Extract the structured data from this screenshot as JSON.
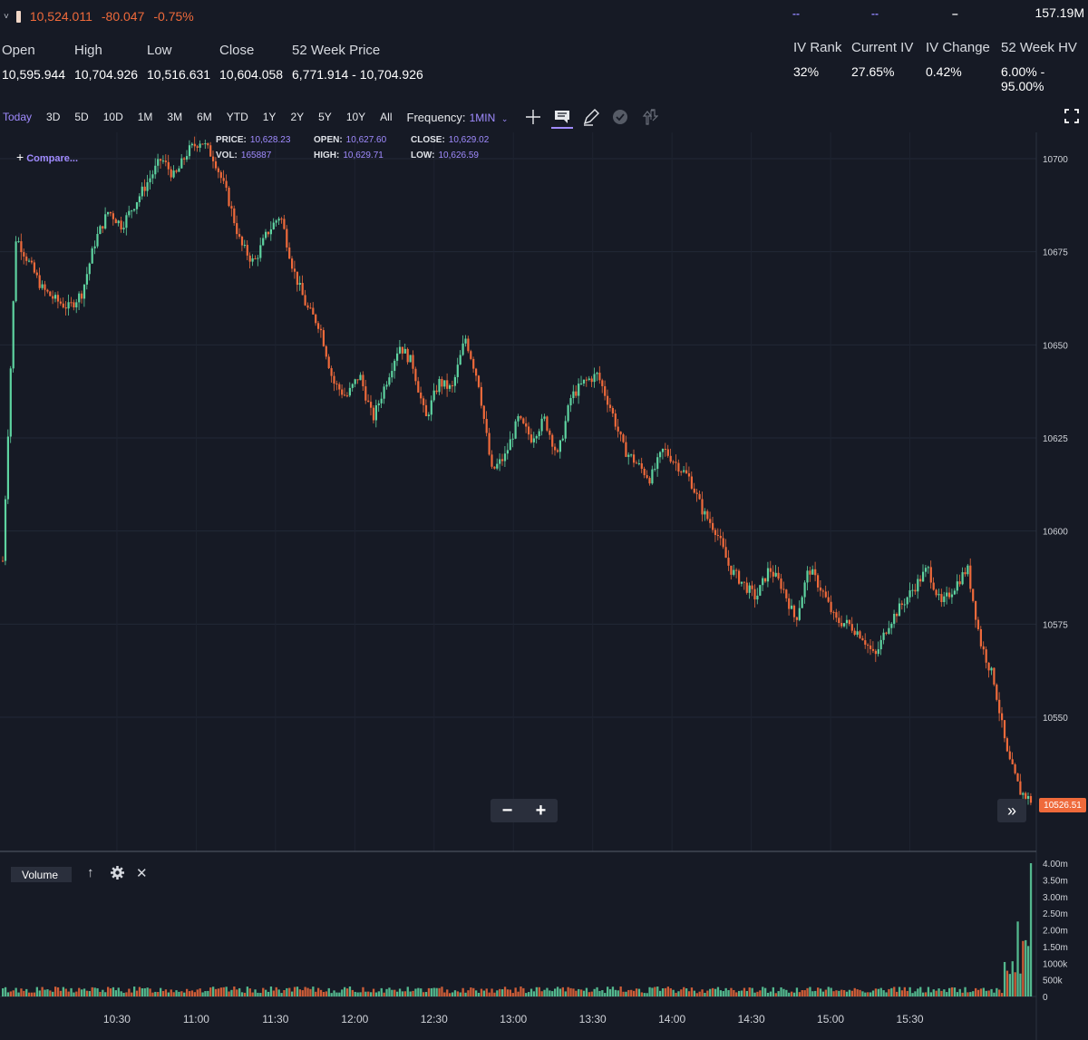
{
  "ticker": {
    "price": "10,524.011",
    "change": "-80.047",
    "change_pct": "-0.75%"
  },
  "quote": [
    {
      "label": "Open",
      "value": "10,595.944"
    },
    {
      "label": "High",
      "value": "10,704.926"
    },
    {
      "label": "Low",
      "value": "10,516.631"
    },
    {
      "label": "Close",
      "value": "10,604.058"
    },
    {
      "label": "52 Week Price",
      "value": "6,771.914 - 10,704.926"
    }
  ],
  "top_right": {
    "dash1": "--",
    "dash2": "--",
    "dash3": "–",
    "total": "157.19M"
  },
  "iv_stats": [
    {
      "label": "IV Rank",
      "value": "32%"
    },
    {
      "label": "Current IV",
      "value": "27.65%"
    },
    {
      "label": "IV Change",
      "value": "0.42%"
    },
    {
      "label": "52 Week HV",
      "value": "6.00% - 95.00%"
    }
  ],
  "ranges": [
    "Today",
    "3D",
    "5D",
    "10D",
    "1M",
    "3M",
    "6M",
    "YTD",
    "1Y",
    "2Y",
    "5Y",
    "10Y",
    "All"
  ],
  "active_range": "Today",
  "frequency": {
    "label": "Frequency:",
    "value": "1MIN"
  },
  "compare_label": "Compare...",
  "ohlc_legend": {
    "price_label": "PRICE:",
    "price": "10,628.23",
    "open_label": "OPEN:",
    "open": "10,627.60",
    "close_label": "CLOSE:",
    "close": "10,629.02",
    "vol_label": "VOL:",
    "vol": "165887",
    "high_label": "HIGH:",
    "high": "10,629.71",
    "low_label": "LOW:",
    "low": "10,626.59"
  },
  "price_tag": "10526.51",
  "volume_label": "Volume",
  "colors": {
    "up": "#5ed3a0",
    "down": "#ef6a3b",
    "accent": "#a08bff",
    "background": "#161a25"
  },
  "icons": [
    "crosshair-icon",
    "chat-icon",
    "pencil-icon",
    "check-circle-icon",
    "up-down-arrows-icon",
    "fullscreen-icon"
  ],
  "chart_data": {
    "type": "candlestick",
    "price_axis": {
      "ticks": [
        10700,
        10675,
        10650,
        10625,
        10600,
        10575,
        10550
      ],
      "ylim": [
        10519,
        10706
      ]
    },
    "time_axis": {
      "ticks": [
        "10:30",
        "11:00",
        "11:30",
        "12:00",
        "12:30",
        "13:00",
        "13:30",
        "14:00",
        "14:30",
        "15:00",
        "15:30"
      ],
      "session": [
        "09:30",
        "16:00"
      ]
    },
    "price_path": [
      [
        0,
        10592
      ],
      [
        5,
        10679
      ],
      [
        10,
        10672
      ],
      [
        15,
        10665
      ],
      [
        20,
        10662
      ],
      [
        25,
        10660
      ],
      [
        30,
        10664
      ],
      [
        35,
        10678
      ],
      [
        40,
        10686
      ],
      [
        45,
        10682
      ],
      [
        55,
        10694
      ],
      [
        60,
        10700
      ],
      [
        65,
        10695
      ],
      [
        70,
        10702
      ],
      [
        75,
        10705
      ],
      [
        80,
        10700
      ],
      [
        85,
        10690
      ],
      [
        90,
        10677
      ],
      [
        95,
        10672
      ],
      [
        100,
        10680
      ],
      [
        105,
        10685
      ],
      [
        110,
        10670
      ],
      [
        115,
        10660
      ],
      [
        120,
        10655
      ],
      [
        125,
        10640
      ],
      [
        130,
        10636
      ],
      [
        135,
        10642
      ],
      [
        140,
        10630
      ],
      [
        145,
        10640
      ],
      [
        150,
        10650
      ],
      [
        155,
        10645
      ],
      [
        160,
        10630
      ],
      [
        165,
        10640
      ],
      [
        170,
        10638
      ],
      [
        175,
        10652
      ],
      [
        180,
        10640
      ],
      [
        185,
        10616
      ],
      [
        190,
        10620
      ],
      [
        195,
        10630
      ],
      [
        200,
        10625
      ],
      [
        205,
        10630
      ],
      [
        210,
        10620
      ],
      [
        215,
        10636
      ],
      [
        220,
        10640
      ],
      [
        225,
        10642
      ],
      [
        230,
        10633
      ],
      [
        235,
        10622
      ],
      [
        240,
        10618
      ],
      [
        245,
        10614
      ],
      [
        250,
        10622
      ],
      [
        255,
        10618
      ],
      [
        260,
        10614
      ],
      [
        265,
        10605
      ],
      [
        270,
        10600
      ],
      [
        275,
        10590
      ],
      [
        280,
        10586
      ],
      [
        285,
        10582
      ],
      [
        290,
        10590
      ],
      [
        295,
        10585
      ],
      [
        300,
        10576
      ],
      [
        305,
        10590
      ],
      [
        310,
        10584
      ],
      [
        315,
        10576
      ],
      [
        320,
        10575
      ],
      [
        325,
        10572
      ],
      [
        330,
        10566
      ],
      [
        335,
        10575
      ],
      [
        340,
        10580
      ],
      [
        345,
        10585
      ],
      [
        350,
        10590
      ],
      [
        355,
        10580
      ],
      [
        360,
        10585
      ],
      [
        365,
        10590
      ],
      [
        370,
        10570
      ],
      [
        375,
        10560
      ],
      [
        380,
        10540
      ],
      [
        385,
        10530
      ],
      [
        390,
        10527
      ]
    ],
    "volume_axis": {
      "ticks": [
        "4.00m",
        "3.50m",
        "3.00m",
        "2.50m",
        "2.00m",
        "1.50m",
        "1000k",
        "500k",
        "0"
      ],
      "ylim": [
        0,
        4000000
      ]
    },
    "volume_levels": {
      "typical": 250000,
      "late_spike": 2250000,
      "close_spike": 4000000
    }
  }
}
